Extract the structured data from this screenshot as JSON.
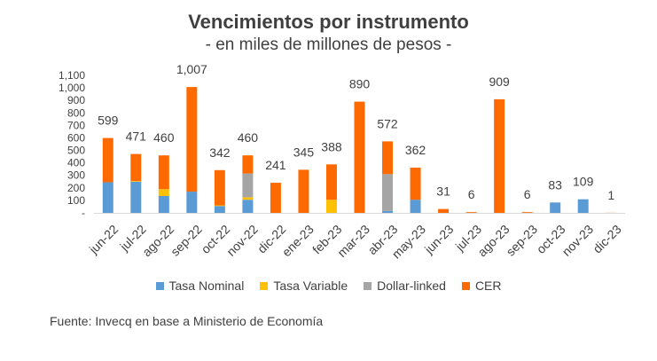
{
  "chart_data": {
    "type": "bar",
    "stacked": true,
    "title": "Vencimientos por instrumento",
    "subtitle": "- en miles de millones de pesos -",
    "categories": [
      "jun-22",
      "jul-22",
      "ago-22",
      "sep-22",
      "oct-22",
      "nov-22",
      "dic-22",
      "ene-23",
      "feb-23",
      "mar-23",
      "abr-23",
      "may-23",
      "jun-23",
      "jul-23",
      "ago-23",
      "sep-23",
      "oct-23",
      "nov-23",
      "dic-23"
    ],
    "series": [
      {
        "name": "Tasa Nominal",
        "color": "#5b9bd5",
        "values": [
          245,
          250,
          135,
          170,
          55,
          105,
          0,
          0,
          0,
          0,
          15,
          105,
          0,
          0,
          0,
          0,
          83,
          109,
          0
        ]
      },
      {
        "name": "Tasa Variable",
        "color": "#ffc000",
        "values": [
          0,
          5,
          55,
          0,
          5,
          20,
          0,
          0,
          105,
          0,
          0,
          0,
          0,
          0,
          0,
          0,
          0,
          0,
          0
        ]
      },
      {
        "name": "Dollar-linked",
        "color": "#a5a5a5",
        "values": [
          0,
          0,
          0,
          0,
          0,
          190,
          0,
          0,
          0,
          0,
          295,
          0,
          0,
          0,
          0,
          0,
          0,
          0,
          0
        ]
      },
      {
        "name": "CER",
        "color": "#ff6a00",
        "values": [
          354,
          216,
          270,
          837,
          282,
          145,
          241,
          345,
          283,
          890,
          262,
          257,
          31,
          6,
          909,
          6,
          0,
          0,
          1
        ]
      }
    ],
    "totals": [
      "599",
      "471",
      "460",
      "1,007",
      "342",
      "460",
      "241",
      "345",
      "388",
      "890",
      "572",
      "362",
      "31",
      "6",
      "909",
      "6",
      "83",
      "109",
      "1"
    ],
    "yticks": [
      "-",
      "100",
      "200",
      "300",
      "400",
      "500",
      "600",
      "700",
      "800",
      "900",
      "1,000",
      "1,100"
    ],
    "ylim": [
      0,
      1100
    ],
    "legend_position": "bottom",
    "grid": false
  },
  "source": "Fuente: Invecq en base a Ministerio de Economía"
}
